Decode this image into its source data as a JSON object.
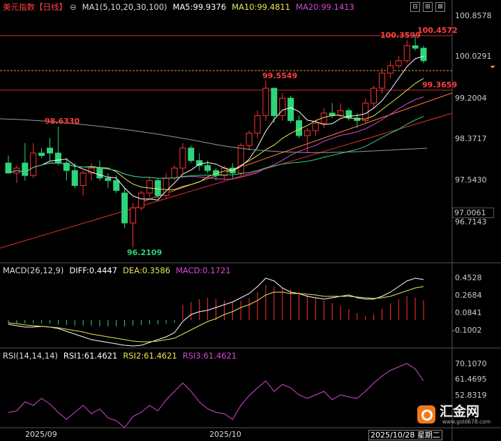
{
  "header": {
    "title": "美元指数【日线】",
    "settings_glyph": "⊖",
    "ma_label": "MA1(5,10,20,30,100)",
    "ma5": "MA5:99.9376",
    "ma10": "MA10:99.4811",
    "ma20": "MA20:99.1413"
  },
  "window_buttons": [
    "⊟",
    "⊞",
    "⊠"
  ],
  "price_axis": [
    "100.8578",
    "100.0291",
    "99.2004",
    "98.3717",
    "97.5430",
    "96.7143"
  ],
  "current_price_box": "97.0061",
  "price_labels": {
    "high_left": "100.3599",
    "high_right": "100.4572",
    "level_99_5": "99.5549",
    "level_99_3": "99.3659",
    "level_98_6": "98.6330",
    "low": "96.2109"
  },
  "macd": {
    "label": "MACD(26,12,9)",
    "diff": "DIFF:0.4447",
    "dea": "DEA:0.3586",
    "macd": "MACD:0.1721",
    "axis": [
      "0.4528",
      "0.2684",
      "0.0841",
      "-0.1002"
    ]
  },
  "rsi": {
    "label": "RSI(14,14,14)",
    "rsi1": "RSI1:61.4621",
    "rsi2": "RSI2:61.4621",
    "rsi3": "RSI3:61.4621",
    "axis": [
      "70.1070",
      "61.4695",
      "52.8319"
    ]
  },
  "time_axis": [
    "2025/09",
    "2025/10",
    "2025/10/28 星期二"
  ],
  "watermark": {
    "brand": "汇金网",
    "url": "www.gold678.com"
  },
  "colors": {
    "up": "#ff3333",
    "down": "#2ed47a",
    "ma5": "#ffffff",
    "ma10": "#e8e85a",
    "ma20": "#d44ad4",
    "ma30": "#2ed47a",
    "ma100": "#9a9a9a",
    "trend": "#e03030"
  },
  "chart_data": {
    "type": "candlestick",
    "price_range": [
      96.2109,
      100.4572
    ],
    "candles": [
      {
        "o": 97.9,
        "h": 98.05,
        "l": 97.7,
        "c": 97.7
      },
      {
        "o": 97.7,
        "h": 97.85,
        "l": 97.5,
        "c": 97.8
      },
      {
        "o": 97.9,
        "h": 98.3,
        "l": 97.55,
        "c": 97.65
      },
      {
        "o": 97.65,
        "h": 98.3,
        "l": 97.6,
        "c": 98.1
      },
      {
        "o": 98.1,
        "h": 98.2,
        "l": 98.0,
        "c": 98.05
      },
      {
        "o": 98.2,
        "h": 98.4,
        "l": 97.95,
        "c": 98.1
      },
      {
        "o": 98.1,
        "h": 98.63,
        "l": 97.85,
        "c": 97.9
      },
      {
        "o": 97.9,
        "h": 98.0,
        "l": 97.55,
        "c": 97.75
      },
      {
        "o": 97.75,
        "h": 97.9,
        "l": 97.4,
        "c": 97.45
      },
      {
        "o": 97.45,
        "h": 97.75,
        "l": 97.25,
        "c": 97.7
      },
      {
        "o": 97.7,
        "h": 97.9,
        "l": 97.55,
        "c": 97.8
      },
      {
        "o": 97.8,
        "h": 97.95,
        "l": 97.55,
        "c": 97.6
      },
      {
        "o": 97.6,
        "h": 97.7,
        "l": 97.4,
        "c": 97.55
      },
      {
        "o": 97.55,
        "h": 97.65,
        "l": 97.3,
        "c": 97.35
      },
      {
        "o": 97.3,
        "h": 97.4,
        "l": 96.6,
        "c": 96.7
      },
      {
        "o": 96.7,
        "h": 97.1,
        "l": 96.21,
        "c": 97.0
      },
      {
        "o": 97.0,
        "h": 97.35,
        "l": 96.95,
        "c": 97.3
      },
      {
        "o": 97.3,
        "h": 97.6,
        "l": 97.2,
        "c": 97.55
      },
      {
        "o": 97.55,
        "h": 97.6,
        "l": 97.2,
        "c": 97.25
      },
      {
        "o": 97.25,
        "h": 97.7,
        "l": 97.2,
        "c": 97.6
      },
      {
        "o": 97.6,
        "h": 97.85,
        "l": 97.55,
        "c": 97.8
      },
      {
        "o": 97.8,
        "h": 98.3,
        "l": 97.7,
        "c": 98.2
      },
      {
        "o": 98.2,
        "h": 98.25,
        "l": 97.9,
        "c": 97.95
      },
      {
        "o": 97.95,
        "h": 98.1,
        "l": 97.75,
        "c": 97.85
      },
      {
        "o": 97.85,
        "h": 97.95,
        "l": 97.7,
        "c": 97.75
      },
      {
        "o": 97.75,
        "h": 97.8,
        "l": 97.55,
        "c": 97.65
      },
      {
        "o": 97.65,
        "h": 97.85,
        "l": 97.55,
        "c": 97.8
      },
      {
        "o": 97.8,
        "h": 97.9,
        "l": 97.6,
        "c": 97.7
      },
      {
        "o": 97.7,
        "h": 98.3,
        "l": 97.65,
        "c": 98.25
      },
      {
        "o": 98.25,
        "h": 98.55,
        "l": 98.15,
        "c": 98.5
      },
      {
        "o": 98.5,
        "h": 98.95,
        "l": 98.4,
        "c": 98.85
      },
      {
        "o": 98.85,
        "h": 99.55,
        "l": 98.75,
        "c": 99.4
      },
      {
        "o": 99.4,
        "h": 99.4,
        "l": 98.7,
        "c": 98.85
      },
      {
        "o": 98.85,
        "h": 99.3,
        "l": 98.75,
        "c": 99.2
      },
      {
        "o": 99.2,
        "h": 99.25,
        "l": 98.7,
        "c": 98.75
      },
      {
        "o": 98.75,
        "h": 98.85,
        "l": 98.4,
        "c": 98.45
      },
      {
        "o": 98.45,
        "h": 98.6,
        "l": 98.1,
        "c": 98.55
      },
      {
        "o": 98.55,
        "h": 98.75,
        "l": 98.45,
        "c": 98.7
      },
      {
        "o": 98.7,
        "h": 99.0,
        "l": 98.6,
        "c": 98.9
      },
      {
        "o": 98.9,
        "h": 99.1,
        "l": 98.8,
        "c": 98.85
      },
      {
        "o": 98.85,
        "h": 99.1,
        "l": 98.8,
        "c": 98.95
      },
      {
        "o": 98.95,
        "h": 99.0,
        "l": 98.75,
        "c": 98.8
      },
      {
        "o": 98.8,
        "h": 98.9,
        "l": 98.6,
        "c": 98.75
      },
      {
        "o": 98.75,
        "h": 99.2,
        "l": 98.7,
        "c": 99.1
      },
      {
        "o": 99.1,
        "h": 99.45,
        "l": 99.0,
        "c": 99.4
      },
      {
        "o": 99.4,
        "h": 99.8,
        "l": 99.3,
        "c": 99.7
      },
      {
        "o": 99.7,
        "h": 99.95,
        "l": 99.6,
        "c": 99.85
      },
      {
        "o": 99.85,
        "h": 100.05,
        "l": 99.8,
        "c": 99.95
      },
      {
        "o": 99.95,
        "h": 100.36,
        "l": 99.9,
        "c": 100.25
      },
      {
        "o": 100.25,
        "h": 100.46,
        "l": 100.15,
        "c": 100.2
      },
      {
        "o": 100.2,
        "h": 100.25,
        "l": 99.9,
        "c": 99.95
      }
    ],
    "x_labels": [
      "2025/09",
      "2025/10",
      "2025/10/28 星期二"
    ]
  }
}
